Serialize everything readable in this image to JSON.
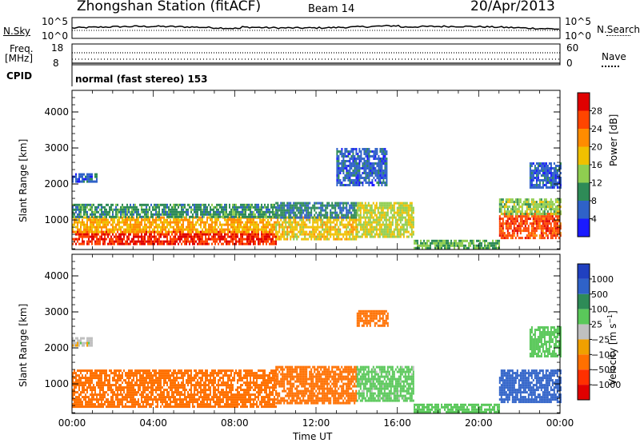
{
  "header": {
    "station": "Zhongshan Station (fitACF)",
    "beam": "Beam 14",
    "date": "20/Apr/2013"
  },
  "status_panels": {
    "nsky_label": "N.Sky",
    "nsky_tick_top": "10^5",
    "nsky_tick_bottom": "10^0",
    "nsearch_label": "N.Search",
    "nsearch_tick_top": "10^5",
    "nsearch_tick_bottom": "10^0",
    "freq_label_line1": "Freq.",
    "freq_label_line2": "[MHz]",
    "freq_tick_top": "18",
    "freq_tick_bottom": "8",
    "nave_label": "Nave",
    "nave_tick_top": "60",
    "nave_tick_bottom": "0",
    "cpid_label": "CPID",
    "cpid_text": "normal (fast stereo) 153"
  },
  "chart_data": [
    {
      "type": "heatmap",
      "panel": "power",
      "xlabel": "Time UT",
      "ylabel": "Slant Range [km]",
      "xlim": [
        0,
        24
      ],
      "ylim": [
        180,
        4600
      ],
      "x_ticks": [
        "00:00",
        "04:00",
        "08:00",
        "12:00",
        "16:00",
        "20:00",
        "00:00"
      ],
      "y_ticks": [
        1000,
        2000,
        3000,
        4000
      ],
      "colorbar": {
        "label": "Power [dB]",
        "ticks": [
          "4",
          "8",
          "12",
          "16",
          "20",
          "24",
          "28"
        ],
        "colors": [
          "#1a1aff",
          "#2f62c8",
          "#2e8b57",
          "#8fce50",
          "#f0c000",
          "#ff8c00",
          "#ff4500",
          "#e00000"
        ]
      },
      "regions": [
        {
          "t0": 0.0,
          "t1": 10.0,
          "r0": 350,
          "r1": 700,
          "value": 28
        },
        {
          "t0": 0.0,
          "t1": 10.0,
          "r0": 700,
          "r1": 1100,
          "value": 20
        },
        {
          "t0": 0.0,
          "t1": 10.0,
          "r0": 1100,
          "r1": 1450,
          "value": 10
        },
        {
          "t0": 10.0,
          "t1": 14.0,
          "r0": 450,
          "r1": 1100,
          "value": 18
        },
        {
          "t0": 10.0,
          "t1": 14.0,
          "r0": 1100,
          "r1": 1500,
          "value": 9
        },
        {
          "t0": 14.0,
          "t1": 16.8,
          "r0": 550,
          "r1": 1500,
          "value": 16
        },
        {
          "t0": 16.8,
          "t1": 21.0,
          "r0": 250,
          "r1": 450,
          "value": 12
        },
        {
          "t0": 21.0,
          "t1": 24.0,
          "r0": 500,
          "r1": 1200,
          "value": 26
        },
        {
          "t0": 21.0,
          "t1": 24.0,
          "r0": 1200,
          "r1": 1600,
          "value": 14
        },
        {
          "t0": 0.0,
          "t1": 1.2,
          "r0": 2050,
          "r1": 2300,
          "value": 6
        },
        {
          "t0": 13.0,
          "t1": 15.5,
          "r0": 2000,
          "r1": 3000,
          "value": 6
        },
        {
          "t0": 22.5,
          "t1": 24.0,
          "r0": 1900,
          "r1": 2600,
          "value": 6
        }
      ]
    },
    {
      "type": "heatmap",
      "panel": "velocity",
      "xlabel": "Time UT",
      "ylabel": "Slant Range [km]",
      "xlim": [
        0,
        24
      ],
      "ylim": [
        180,
        4600
      ],
      "x_ticks": [
        "00:00",
        "04:00",
        "08:00",
        "12:00",
        "16:00",
        "20:00",
        "00:00"
      ],
      "y_ticks": [
        1000,
        2000,
        3000,
        4000
      ],
      "colorbar": {
        "label": "Velocity [m s^-1]",
        "ticks": [
          "1000",
          "500",
          "100",
          "25",
          "−25",
          "−100",
          "−500",
          "−1000"
        ],
        "colors": [
          "#2040c0",
          "#2f62c8",
          "#2e8b57",
          "#5ac85a",
          "#c0c0c0",
          "#f0a000",
          "#ff7000",
          "#ff3000",
          "#e00000"
        ]
      },
      "regions": [
        {
          "t0": 0.0,
          "t1": 10.0,
          "r0": 350,
          "r1": 1400,
          "value": -150
        },
        {
          "t0": 0.0,
          "t1": 1.0,
          "r0": 2050,
          "r1": 2300,
          "value": 0
        },
        {
          "t0": 10.0,
          "t1": 14.0,
          "r0": 450,
          "r1": 1500,
          "value": -200
        },
        {
          "t0": 14.0,
          "t1": 16.8,
          "r0": 550,
          "r1": 1500,
          "value": 50
        },
        {
          "t0": 14.0,
          "t1": 15.5,
          "r0": 2600,
          "r1": 3050,
          "value": -150
        },
        {
          "t0": 16.8,
          "t1": 21.0,
          "r0": 250,
          "r1": 450,
          "value": 60
        },
        {
          "t0": 21.0,
          "t1": 24.0,
          "r0": 500,
          "r1": 1400,
          "value": 700
        },
        {
          "t0": 22.5,
          "t1": 24.0,
          "r0": 1800,
          "r1": 2600,
          "value": 60
        }
      ]
    }
  ]
}
